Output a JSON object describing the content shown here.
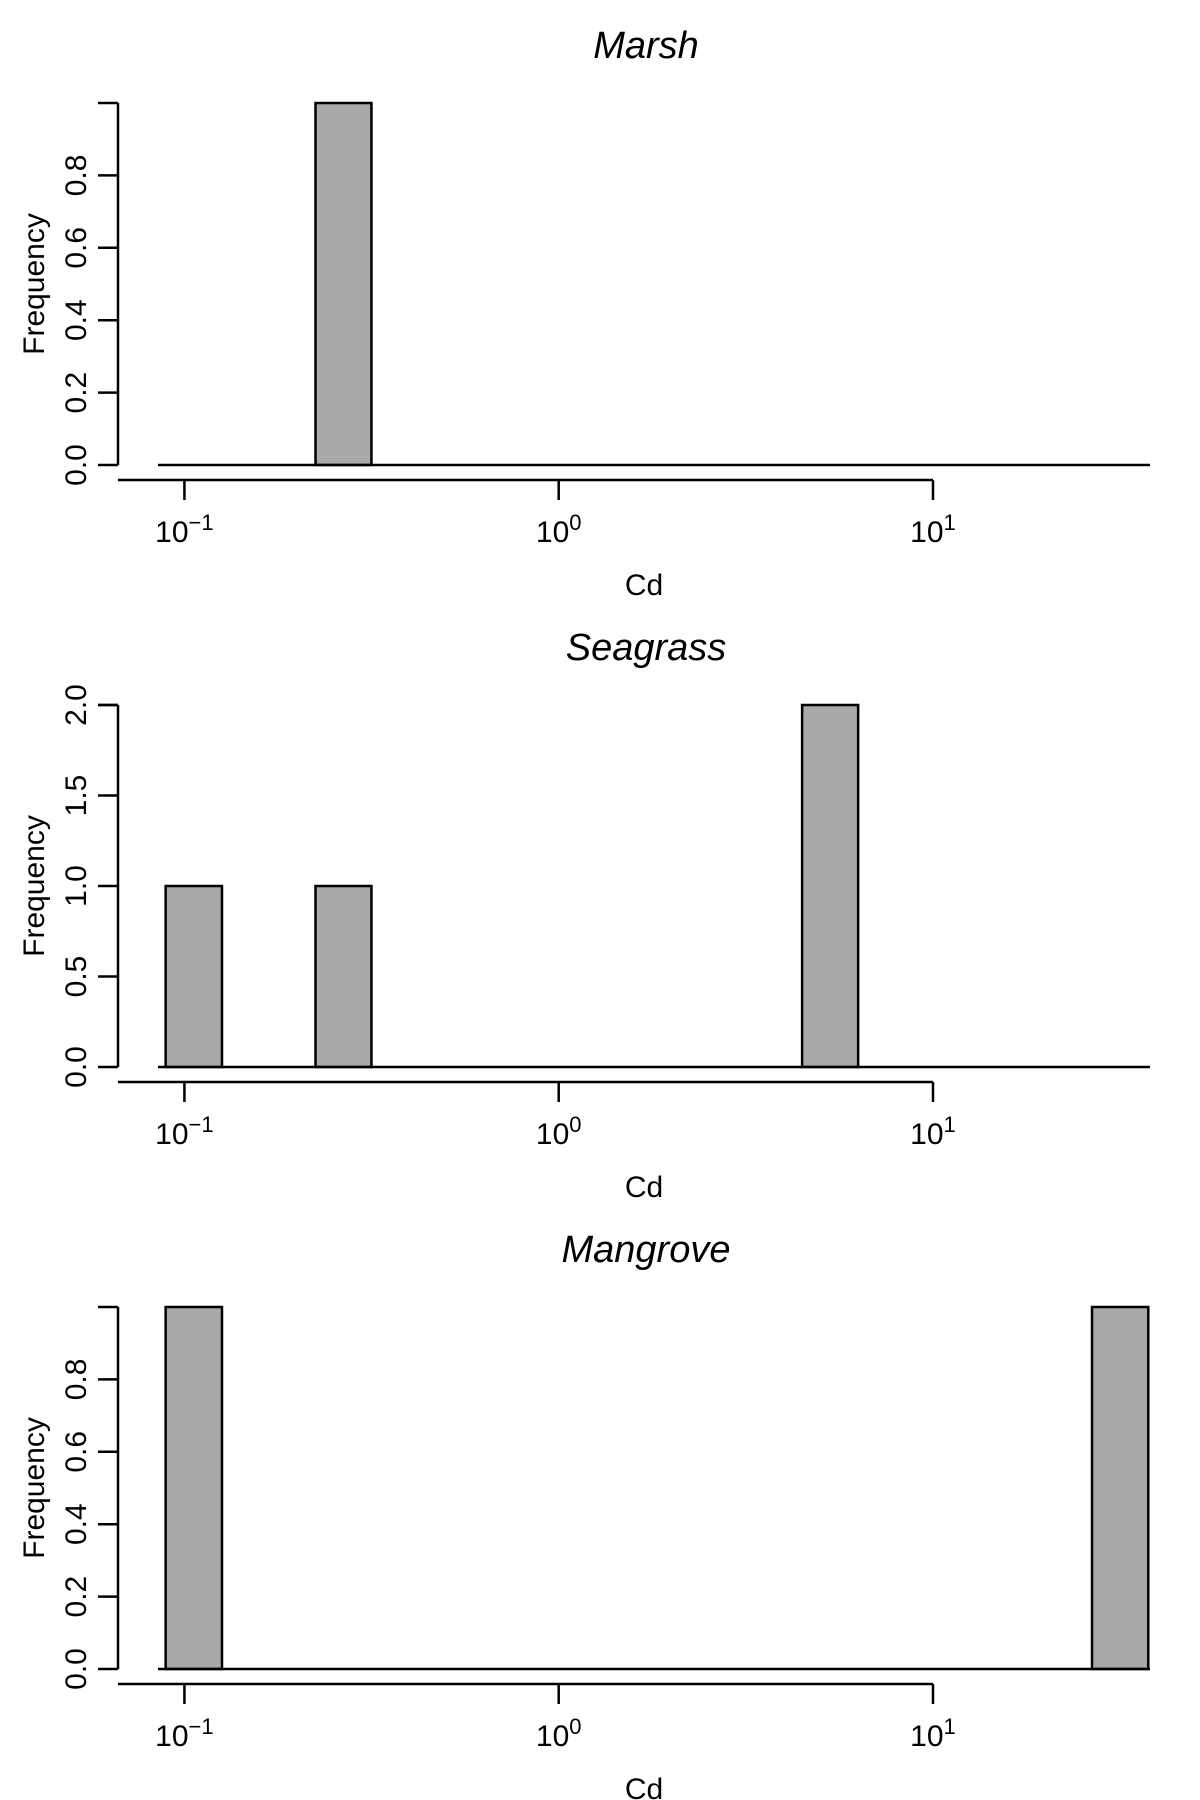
{
  "chart_data": [
    {
      "type": "bar",
      "title": "Marsh",
      "xlabel": "Cd",
      "ylabel": "Frequency",
      "x_scale": "log10",
      "xlim": [
        0.085,
        38
      ],
      "ylim": [
        0,
        1
      ],
      "x_ticks": [
        0.1,
        1,
        10
      ],
      "y_ticks": [
        "0.0",
        "0.2",
        "0.4",
        "0.6",
        "0.8"
      ],
      "y_tick_values": [
        0,
        0.2,
        0.4,
        0.6,
        0.8
      ],
      "y_axis_top": 1,
      "bins": [
        {
          "x0": 0.224,
          "x1": 0.316,
          "count": 1
        }
      ]
    },
    {
      "type": "bar",
      "title": "Seagrass",
      "xlabel": "Cd",
      "ylabel": "Frequency",
      "x_scale": "log10",
      "xlim": [
        0.085,
        38
      ],
      "ylim": [
        0,
        2
      ],
      "x_ticks": [
        0.1,
        1,
        10
      ],
      "y_ticks": [
        "0.0",
        "0.5",
        "1.0",
        "1.5",
        "2.0"
      ],
      "y_tick_values": [
        0,
        0.5,
        1.0,
        1.5,
        2.0
      ],
      "y_axis_top": 2,
      "bins": [
        {
          "x0": 0.0891,
          "x1": 0.126,
          "count": 1
        },
        {
          "x0": 0.224,
          "x1": 0.316,
          "count": 1
        },
        {
          "x0": 4.47,
          "x1": 6.31,
          "count": 2
        }
      ]
    },
    {
      "type": "bar",
      "title": "Mangrove",
      "xlabel": "Cd",
      "ylabel": "Frequency",
      "x_scale": "log10",
      "xlim": [
        0.085,
        38
      ],
      "ylim": [
        0,
        1
      ],
      "x_ticks": [
        0.1,
        1,
        10
      ],
      "y_ticks": [
        "0.0",
        "0.2",
        "0.4",
        "0.6",
        "0.8"
      ],
      "y_tick_values": [
        0,
        0.2,
        0.4,
        0.6,
        0.8
      ],
      "y_axis_top": 1,
      "bins": [
        {
          "x0": 0.0891,
          "x1": 0.126,
          "count": 1
        },
        {
          "x0": 26.6,
          "x1": 37.6,
          "count": 1
        }
      ]
    }
  ]
}
